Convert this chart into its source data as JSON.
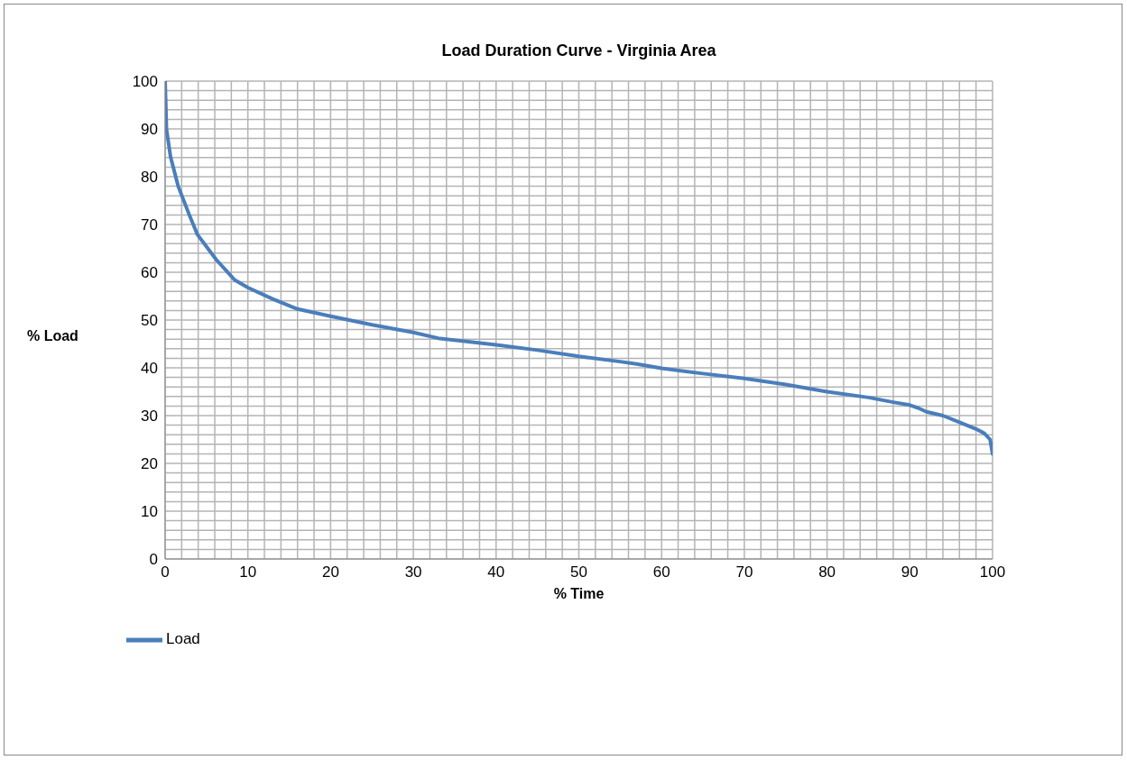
{
  "chart_data": {
    "type": "line",
    "title": "Load Duration Curve - Virginia Area",
    "xlabel": "% Time",
    "ylabel": "% Load",
    "x": [
      0,
      0.16,
      0.65,
      1.6,
      2.9,
      3.9,
      6.2,
      8.4,
      10,
      13,
      16,
      20,
      25,
      30,
      33,
      40,
      45,
      50,
      55,
      57,
      60,
      65,
      70,
      75,
      80,
      85,
      88,
      90,
      91,
      92,
      94,
      96,
      98,
      99,
      99.7,
      100
    ],
    "series": [
      {
        "name": "Load",
        "color": "#4a7ebb",
        "values": [
          100,
          90,
          84.2,
          77.9,
          72.1,
          67.9,
          62.6,
          58.4,
          56.8,
          54.4,
          52.3,
          50.8,
          49,
          47.4,
          46.2,
          44.8,
          43.7,
          42.4,
          41.3,
          40.8,
          39.9,
          38.8,
          37.8,
          36.5,
          35,
          33.8,
          32.8,
          32.2,
          31.6,
          30.8,
          30,
          28.6,
          27.2,
          26.3,
          25,
          22
        ]
      }
    ],
    "xlim": [
      0,
      100
    ],
    "ylim": [
      0,
      100
    ],
    "xticks": [
      0,
      {
        "value": 2,
        "label": null
      },
      {
        "value": 4,
        "label": null
      },
      {
        "value": 6,
        "label": null
      },
      {
        "value": 8,
        "label": null
      },
      10,
      {
        "value": 12,
        "label": null
      },
      {
        "value": 14,
        "label": null
      },
      {
        "value": 16,
        "label": null
      },
      {
        "value": 18,
        "label": null
      },
      20,
      {
        "value": 22,
        "label": null
      },
      {
        "value": 24,
        "label": null
      },
      {
        "value": 26,
        "label": null
      },
      {
        "value": 28,
        "label": null
      },
      30,
      {
        "value": 32,
        "label": null
      },
      {
        "value": 34,
        "label": null
      },
      {
        "value": 36,
        "label": null
      },
      {
        "value": 38,
        "label": null
      },
      40,
      {
        "value": 42,
        "label": null
      },
      {
        "value": 44,
        "label": null
      },
      {
        "value": 46,
        "label": null
      },
      {
        "value": 48,
        "label": null
      },
      50,
      {
        "value": 52,
        "label": null
      },
      {
        "value": 54,
        "label": null
      },
      {
        "value": 56,
        "label": null
      },
      {
        "value": 58,
        "label": null
      },
      60,
      {
        "value": 62,
        "label": null
      },
      {
        "value": 64,
        "label": null
      },
      {
        "value": 66,
        "label": null
      },
      {
        "value": 68,
        "label": null
      },
      70,
      {
        "value": 72,
        "label": null
      },
      {
        "value": 74,
        "label": null
      },
      {
        "value": 76,
        "label": null
      },
      {
        "value": 78,
        "label": null
      },
      80,
      {
        "value": 82,
        "label": null
      },
      {
        "value": 84,
        "label": null
      },
      {
        "value": 86,
        "label": null
      },
      {
        "value": 88,
        "label": null
      },
      90,
      {
        "value": 92,
        "label": null
      },
      {
        "value": 94,
        "label": null
      },
      {
        "value": 96,
        "label": null
      },
      {
        "value": 98,
        "label": null
      },
      100
    ],
    "yticks": [
      0,
      {
        "value": 2,
        "label": null
      },
      {
        "value": 4,
        "label": null
      },
      {
        "value": 6,
        "label": null
      },
      {
        "value": 8,
        "label": null
      },
      10,
      {
        "value": 12,
        "label": null
      },
      {
        "value": 14,
        "label": null
      },
      {
        "value": 16,
        "label": null
      },
      {
        "value": 18,
        "label": null
      },
      20,
      {
        "value": 22,
        "label": null
      },
      {
        "value": 24,
        "label": null
      },
      {
        "value": 26,
        "label": null
      },
      {
        "value": 28,
        "label": null
      },
      30,
      {
        "value": 32,
        "label": null
      },
      {
        "value": 34,
        "label": null
      },
      {
        "value": 36,
        "label": null
      },
      {
        "value": 38,
        "label": null
      },
      40,
      {
        "value": 42,
        "label": null
      },
      {
        "value": 44,
        "label": null
      },
      {
        "value": 46,
        "label": null
      },
      {
        "value": 48,
        "label": null
      },
      50,
      {
        "value": 52,
        "label": null
      },
      {
        "value": 54,
        "label": null
      },
      {
        "value": 56,
        "label": null
      },
      {
        "value": 58,
        "label": null
      },
      60,
      {
        "value": 62,
        "label": null
      },
      {
        "value": 64,
        "label": null
      },
      {
        "value": 66,
        "label": null
      },
      {
        "value": 68,
        "label": null
      },
      70,
      {
        "value": 72,
        "label": null
      },
      {
        "value": 74,
        "label": null
      },
      {
        "value": 76,
        "label": null
      },
      {
        "value": 78,
        "label": null
      },
      80,
      {
        "value": 82,
        "label": null
      },
      {
        "value": 84,
        "label": null
      },
      {
        "value": 86,
        "label": null
      },
      {
        "value": 88,
        "label": null
      },
      90,
      {
        "value": 92,
        "label": null
      },
      {
        "value": 94,
        "label": null
      },
      {
        "value": 96,
        "label": null
      },
      {
        "value": 98,
        "label": null
      },
      100
    ],
    "grid": true,
    "legend": "bottom left",
    "marker": "none",
    "line_style": "solid"
  }
}
